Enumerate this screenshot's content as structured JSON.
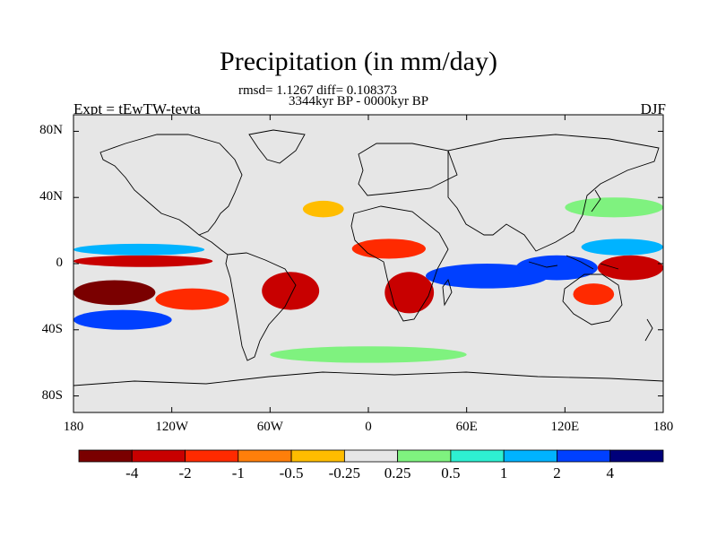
{
  "title": "Precipitation (in mm/day)",
  "stats_line": "rmsd= 1.1267 diff= 0.108373",
  "period_line": "3344kyr BP - 0000kyr BP",
  "experiment_label": "Expt = tEwTW-tevta",
  "season_label": "DJF",
  "y_axis": {
    "ticks": [
      {
        "label": "80N",
        "lat": 80
      },
      {
        "label": "40N",
        "lat": 40
      },
      {
        "label": "0",
        "lat": 0
      },
      {
        "label": "40S",
        "lat": -40
      },
      {
        "label": "80S",
        "lat": -80
      }
    ]
  },
  "x_axis": {
    "ticks": [
      {
        "label": "180",
        "lon": -180
      },
      {
        "label": "120W",
        "lon": -120
      },
      {
        "label": "60W",
        "lon": -60
      },
      {
        "label": "0",
        "lon": 0
      },
      {
        "label": "60E",
        "lon": 60
      },
      {
        "label": "120E",
        "lon": 120
      },
      {
        "label": "180",
        "lon": 180
      }
    ]
  },
  "colorbar": {
    "colors": [
      "#7a0000",
      "#c80000",
      "#ff2a00",
      "#ff7f0a",
      "#ffbd00",
      "#e6e6e6",
      "#7ff27f",
      "#2ef0d2",
      "#00b3ff",
      "#0040ff",
      "#00007a"
    ],
    "labels": [
      "-4",
      "-2",
      "-1",
      "-0.5",
      "-0.25",
      "0.25",
      "0.5",
      "1",
      "2",
      "4"
    ]
  },
  "chart_data": {
    "type": "heatmap",
    "title": "Precipitation (in mm/day)",
    "lon_range": [
      -180,
      180
    ],
    "lat_range": [
      -90,
      90
    ],
    "levels": [
      -4,
      -2,
      -1,
      -0.5,
      -0.25,
      0.25,
      0.5,
      1,
      2,
      4
    ],
    "regions": [
      {
        "name": "central-pacific-dry-band",
        "lon": [
          -180,
          -95
        ],
        "lat": [
          -2,
          5
        ],
        "value": -2.5
      },
      {
        "name": "north-pacific-wet-band",
        "lon": [
          -180,
          -100
        ],
        "lat": [
          5,
          12
        ],
        "value": 1.5
      },
      {
        "name": "south-pacific-dry-core",
        "lon": [
          -180,
          -130
        ],
        "lat": [
          -25,
          -10
        ],
        "value": -4.5
      },
      {
        "name": "south-pacific-dry-tail",
        "lon": [
          -130,
          -85
        ],
        "lat": [
          -28,
          -15
        ],
        "value": -1.2
      },
      {
        "name": "south-pacific-wet-band",
        "lon": [
          -180,
          -120
        ],
        "lat": [
          -40,
          -28
        ],
        "value": 2.5
      },
      {
        "name": "south-america-dry",
        "lon": [
          -65,
          -30
        ],
        "lat": [
          -28,
          -5
        ],
        "value": -3
      },
      {
        "name": "africa-north-dry",
        "lon": [
          -10,
          35
        ],
        "lat": [
          3,
          15
        ],
        "value": -1.5
      },
      {
        "name": "africa-south-dry",
        "lon": [
          10,
          40
        ],
        "lat": [
          -30,
          -5
        ],
        "value": -2.5
      },
      {
        "name": "indian-ocean-wet",
        "lon": [
          35,
          110
        ],
        "lat": [
          -15,
          0
        ],
        "value": 3
      },
      {
        "name": "maritime-continent-wet",
        "lon": [
          90,
          140
        ],
        "lat": [
          -10,
          5
        ],
        "value": 2.5
      },
      {
        "name": "west-pacific-dry",
        "lon": [
          140,
          180
        ],
        "lat": [
          -10,
          5
        ],
        "value": -3
      },
      {
        "name": "west-pacific-wet-north",
        "lon": [
          130,
          180
        ],
        "lat": [
          5,
          15
        ],
        "value": 1.5
      },
      {
        "name": "australia-dry",
        "lon": [
          125,
          150
        ],
        "lat": [
          -25,
          -12
        ],
        "value": -1.5
      },
      {
        "name": "north-atlantic-dry-patch",
        "lon": [
          -40,
          -15
        ],
        "lat": [
          28,
          38
        ],
        "value": -0.4
      },
      {
        "name": "southern-ocean-wet",
        "lon": [
          -60,
          60
        ],
        "lat": [
          -60,
          -50
        ],
        "value": 0.4
      },
      {
        "name": "northwest-pacific-wet",
        "lon": [
          120,
          180
        ],
        "lat": [
          28,
          40
        ],
        "value": 0.4
      }
    ]
  }
}
